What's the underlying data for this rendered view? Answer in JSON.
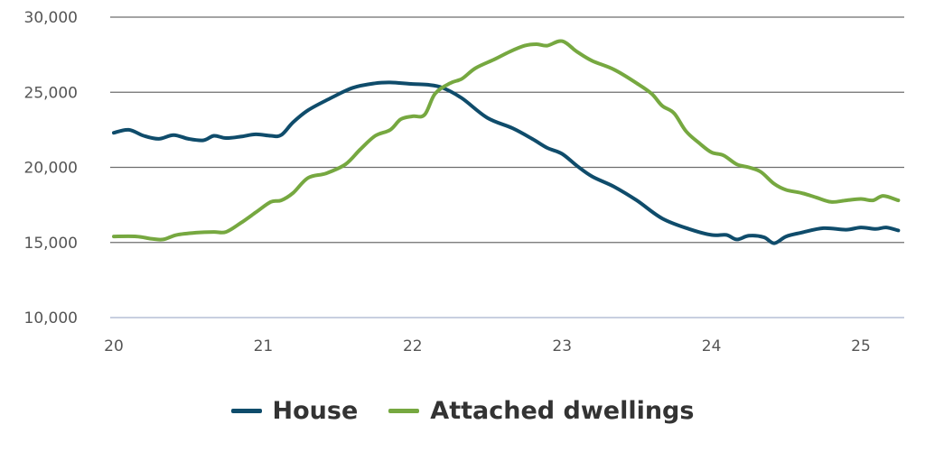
{
  "chart_data": {
    "type": "line",
    "x_ticks": [
      20,
      21,
      22,
      23,
      24,
      25
    ],
    "x_tick_labels": [
      "20",
      "21",
      "22",
      "23",
      "24",
      "25"
    ],
    "xlim": [
      20,
      25.27
    ],
    "y_ticks": [
      10000,
      15000,
      20000,
      25000,
      30000
    ],
    "y_tick_labels": [
      "10,000",
      "15,000",
      "20,000",
      "25,000",
      "30,000"
    ],
    "ylim": [
      10000,
      30000
    ],
    "grid": "horizontal",
    "legend_position": "bottom-center",
    "series": [
      {
        "name": "House",
        "color": "#0f4c6b",
        "x": [
          20.0,
          20.1,
          20.2,
          20.3,
          20.4,
          20.5,
          20.6,
          20.67,
          20.75,
          20.85,
          20.95,
          21.05,
          21.12,
          21.2,
          21.3,
          21.45,
          21.6,
          21.75,
          21.85,
          22.0,
          22.1,
          22.2,
          22.33,
          22.5,
          22.67,
          22.8,
          22.9,
          23.0,
          23.1,
          23.2,
          23.35,
          23.5,
          23.67,
          23.85,
          24.0,
          24.1,
          24.17,
          24.25,
          24.35,
          24.42,
          24.5,
          24.6,
          24.75,
          24.9,
          25.0,
          25.1,
          25.17,
          25.25
        ],
        "y": [
          22300,
          22500,
          22100,
          21900,
          22150,
          21900,
          21800,
          22100,
          21950,
          22050,
          22200,
          22100,
          22150,
          23000,
          23800,
          24600,
          25300,
          25600,
          25650,
          25550,
          25500,
          25300,
          24600,
          23300,
          22600,
          21900,
          21300,
          20900,
          20100,
          19400,
          18700,
          17800,
          16600,
          15900,
          15500,
          15500,
          15200,
          15450,
          15350,
          14950,
          15400,
          15650,
          15950,
          15850,
          16000,
          15900,
          16000,
          15800
        ]
      },
      {
        "name": "Attached dwellings",
        "color": "#76a840",
        "x": [
          20.0,
          20.15,
          20.25,
          20.33,
          20.42,
          20.55,
          20.67,
          20.75,
          20.85,
          20.95,
          21.05,
          21.12,
          21.2,
          21.3,
          21.42,
          21.55,
          21.65,
          21.75,
          21.85,
          21.92,
          22.0,
          22.08,
          22.15,
          22.25,
          22.33,
          22.42,
          22.55,
          22.65,
          22.75,
          22.83,
          22.9,
          23.0,
          23.1,
          23.2,
          23.35,
          23.5,
          23.6,
          23.67,
          23.75,
          23.83,
          23.92,
          24.0,
          24.08,
          24.17,
          24.25,
          24.33,
          24.42,
          24.5,
          24.6,
          24.7,
          24.8,
          24.9,
          25.0,
          25.08,
          25.15,
          25.25
        ],
        "y": [
          15400,
          15400,
          15250,
          15200,
          15500,
          15650,
          15700,
          15700,
          16300,
          17000,
          17700,
          17800,
          18300,
          19300,
          19600,
          20200,
          21200,
          22100,
          22500,
          23200,
          23400,
          23500,
          24900,
          25600,
          25900,
          26600,
          27200,
          27700,
          28100,
          28200,
          28100,
          28400,
          27700,
          27100,
          26500,
          25600,
          24900,
          24100,
          23600,
          22400,
          21600,
          21000,
          20800,
          20200,
          20000,
          19700,
          18900,
          18500,
          18300,
          18000,
          17700,
          17800,
          17900,
          17800,
          18100,
          17800
        ]
      }
    ]
  }
}
